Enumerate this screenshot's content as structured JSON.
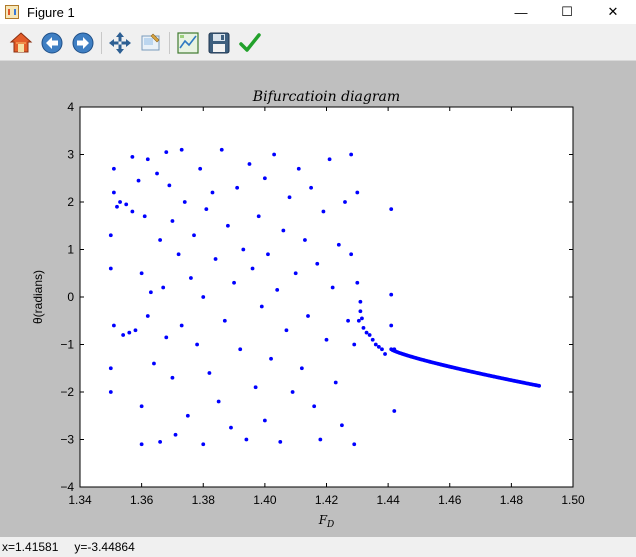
{
  "window": {
    "title": "Figure 1",
    "icon": "matplotlib-figure-icon"
  },
  "window_controls": {
    "minimize": "—",
    "maximize": "☐",
    "close": "✕"
  },
  "toolbar": {
    "buttons": [
      {
        "name": "home-icon",
        "tooltip": "Reset original view"
      },
      {
        "name": "back-icon",
        "tooltip": "Back to previous view"
      },
      {
        "name": "forward-icon",
        "tooltip": "Forward to next view"
      },
      {
        "name": "pan-icon",
        "tooltip": "Pan axes"
      },
      {
        "name": "zoom-icon",
        "tooltip": "Zoom to rectangle"
      },
      {
        "name": "subplots-icon",
        "tooltip": "Configure subplots"
      },
      {
        "name": "save-icon",
        "tooltip": "Save the figure"
      },
      {
        "name": "edit-check-icon",
        "tooltip": "Edit curves"
      }
    ]
  },
  "status": {
    "x": "x=1.41581",
    "y": "y=-3.44864"
  },
  "colors": {
    "figure_bg": "#bfbfbf",
    "axes_bg": "#ffffff",
    "marker": "#0000ff"
  },
  "chart_data": {
    "type": "scatter",
    "title": "Bifurcatioin diagram",
    "xlabel": "F_D",
    "ylabel": "θ(radians)",
    "xlim": [
      1.34,
      1.5
    ],
    "ylim": [
      -4,
      4
    ],
    "xticks": [
      "1.34",
      "1.36",
      "1.38",
      "1.40",
      "1.42",
      "1.44",
      "1.46",
      "1.48",
      "1.50"
    ],
    "yticks": [
      "4",
      "3",
      "2",
      "1",
      "0",
      "−1",
      "−2",
      "−3",
      "−4"
    ],
    "grid": false,
    "series": [
      {
        "marker": "dot",
        "chaotic_region": {
          "x_range": [
            1.35,
            1.43
          ],
          "points": [
            [
              1.35,
              1.3
            ],
            [
              1.35,
              0.6
            ],
            [
              1.35,
              -1.5
            ],
            [
              1.35,
              -2.0
            ],
            [
              1.351,
              2.7
            ],
            [
              1.351,
              2.2
            ],
            [
              1.351,
              -0.6
            ],
            [
              1.352,
              1.9
            ],
            [
              1.353,
              2.0
            ],
            [
              1.354,
              -0.8
            ],
            [
              1.355,
              1.95
            ],
            [
              1.356,
              -0.75
            ],
            [
              1.357,
              2.95
            ],
            [
              1.357,
              1.8
            ],
            [
              1.358,
              -0.7
            ],
            [
              1.359,
              2.45
            ],
            [
              1.36,
              -3.1
            ],
            [
              1.36,
              -2.3
            ],
            [
              1.36,
              0.5
            ],
            [
              1.361,
              1.7
            ],
            [
              1.362,
              2.9
            ],
            [
              1.362,
              -0.4
            ],
            [
              1.363,
              0.1
            ],
            [
              1.364,
              -1.4
            ],
            [
              1.365,
              2.6
            ],
            [
              1.366,
              -3.05
            ],
            [
              1.366,
              1.2
            ],
            [
              1.367,
              0.2
            ],
            [
              1.368,
              3.05
            ],
            [
              1.368,
              -0.85
            ],
            [
              1.369,
              2.35
            ],
            [
              1.37,
              -1.7
            ],
            [
              1.37,
              1.6
            ],
            [
              1.371,
              -2.9
            ],
            [
              1.372,
              0.9
            ],
            [
              1.373,
              3.1
            ],
            [
              1.373,
              -0.6
            ],
            [
              1.374,
              2.0
            ],
            [
              1.375,
              -2.5
            ],
            [
              1.376,
              0.4
            ],
            [
              1.377,
              1.3
            ],
            [
              1.378,
              -1.0
            ],
            [
              1.379,
              2.7
            ],
            [
              1.38,
              -3.1
            ],
            [
              1.38,
              0.0
            ],
            [
              1.381,
              1.85
            ],
            [
              1.382,
              -1.6
            ],
            [
              1.383,
              2.2
            ],
            [
              1.384,
              0.8
            ],
            [
              1.385,
              -2.2
            ],
            [
              1.386,
              3.1
            ],
            [
              1.387,
              -0.5
            ],
            [
              1.388,
              1.5
            ],
            [
              1.389,
              -2.75
            ],
            [
              1.39,
              0.3
            ],
            [
              1.391,
              2.3
            ],
            [
              1.392,
              -1.1
            ],
            [
              1.393,
              1.0
            ],
            [
              1.394,
              -3.0
            ],
            [
              1.395,
              2.8
            ],
            [
              1.396,
              0.6
            ],
            [
              1.397,
              -1.9
            ],
            [
              1.398,
              1.7
            ],
            [
              1.399,
              -0.2
            ],
            [
              1.4,
              2.5
            ],
            [
              1.4,
              -2.6
            ],
            [
              1.401,
              0.9
            ],
            [
              1.402,
              -1.3
            ],
            [
              1.403,
              3.0
            ],
            [
              1.404,
              0.15
            ],
            [
              1.405,
              -3.05
            ],
            [
              1.406,
              1.4
            ],
            [
              1.407,
              -0.7
            ],
            [
              1.408,
              2.1
            ],
            [
              1.409,
              -2.0
            ],
            [
              1.41,
              0.5
            ],
            [
              1.411,
              2.7
            ],
            [
              1.412,
              -1.5
            ],
            [
              1.413,
              1.2
            ],
            [
              1.414,
              -0.4
            ],
            [
              1.415,
              2.3
            ],
            [
              1.416,
              -2.3
            ],
            [
              1.417,
              0.7
            ],
            [
              1.418,
              -3.0
            ],
            [
              1.419,
              1.8
            ],
            [
              1.42,
              -0.9
            ],
            [
              1.421,
              2.9
            ],
            [
              1.422,
              0.2
            ],
            [
              1.423,
              -1.8
            ],
            [
              1.424,
              1.1
            ],
            [
              1.425,
              -2.7
            ],
            [
              1.426,
              2.0
            ],
            [
              1.427,
              -0.5
            ],
            [
              1.428,
              3.0
            ],
            [
              1.428,
              0.9
            ],
            [
              1.429,
              -3.1
            ],
            [
              1.429,
              -1.0
            ],
            [
              1.43,
              2.2
            ],
            [
              1.43,
              0.3
            ]
          ]
        },
        "transition_points": [
          [
            1.4305,
            -0.5
          ],
          [
            1.431,
            -0.3
          ],
          [
            1.431,
            -0.1
          ],
          [
            1.4315,
            -0.45
          ],
          [
            1.432,
            -0.65
          ],
          [
            1.433,
            -0.75
          ],
          [
            1.434,
            -0.8
          ],
          [
            1.435,
            -0.9
          ],
          [
            1.436,
            -1.0
          ],
          [
            1.437,
            -1.05
          ],
          [
            1.438,
            -1.1
          ],
          [
            1.439,
            -1.2
          ],
          [
            1.441,
            1.85
          ],
          [
            1.441,
            0.05
          ],
          [
            1.441,
            -0.6
          ],
          [
            1.442,
            -2.4
          ],
          [
            1.442,
            -1.1
          ]
        ],
        "periodic_branch": {
          "x_range": [
            1.441,
            1.489
          ],
          "y_at_start": -1.1,
          "y_at_end": -1.87
        }
      }
    ]
  }
}
